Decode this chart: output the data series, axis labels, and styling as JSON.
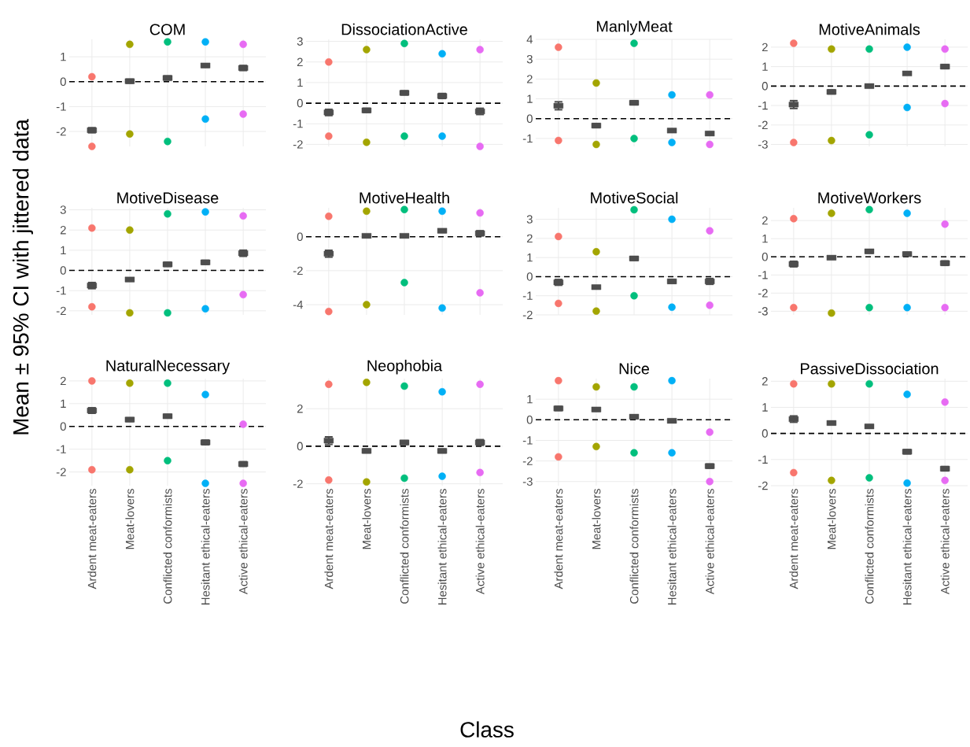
{
  "chart_data": [
    {
      "type": "scatter",
      "title": "COM",
      "categories": [
        "Ardent meat-eaters",
        "Meat-lovers",
        "Conflicted conformists",
        "Hesitant ethical-eaters",
        "Active ethical-eaters"
      ],
      "ylabel": null,
      "ylim": [
        -2.6,
        1.7
      ],
      "yticks": [
        -2,
        -1,
        0,
        1
      ],
      "grid": true,
      "tick_labels": "y",
      "ref_lines": [
        {
          "axis": "y",
          "value": 0,
          "line_style": "dashed",
          "color": "#000000"
        }
      ],
      "series": [
        {
          "type": "scatter",
          "marker": "circle",
          "x": [
            "Ardent meat-eaters",
            "Ardent meat-eaters",
            "Meat-lovers",
            "Meat-lovers",
            "Conflicted conformists",
            "Conflicted conformists",
            "Hesitant ethical-eaters",
            "Hesitant ethical-eaters",
            "Active ethical-eaters",
            "Active ethical-eaters"
          ],
          "values": [
            -2.6,
            0.2,
            -2.1,
            1.5,
            -2.4,
            1.6,
            -1.5,
            1.6,
            -1.3,
            1.5
          ],
          "colors": [
            "#f8766d",
            "#f8766d",
            "#a3a500",
            "#a3a500",
            "#00bf7d",
            "#00bf7d",
            "#00b0f6",
            "#00b0f6",
            "#e76bf3",
            "#e76bf3"
          ]
        },
        {
          "type": "scatter",
          "marker": "square",
          "color": "#4d4d4d",
          "values": [
            -1.95,
            0.02,
            0.15,
            0.65,
            0.55
          ],
          "errors": [
            0.1,
            0.08,
            0.08,
            0.07,
            0.1
          ]
        }
      ]
    },
    {
      "type": "scatter",
      "title": "DissociationActive",
      "categories": [
        "Ardent meat-eaters",
        "Meat-lovers",
        "Conflicted conformists",
        "Hesitant ethical-eaters",
        "Active ethical-eaters"
      ],
      "ylim": [
        -2.1,
        3.1
      ],
      "yticks": [
        -2,
        -1,
        0,
        1,
        2,
        3
      ],
      "grid": true,
      "tick_labels": "y",
      "ref_lines": [
        {
          "axis": "y",
          "value": 0,
          "line_style": "dashed",
          "color": "#000000"
        }
      ],
      "series": [
        {
          "type": "scatter",
          "marker": "circle",
          "x": [
            "Ardent meat-eaters",
            "Ardent meat-eaters",
            "Meat-lovers",
            "Meat-lovers",
            "Conflicted conformists",
            "Conflicted conformists",
            "Hesitant ethical-eaters",
            "Hesitant ethical-eaters",
            "Active ethical-eaters",
            "Active ethical-eaters"
          ],
          "values": [
            -1.6,
            2.0,
            -1.9,
            2.6,
            -1.6,
            2.9,
            -1.6,
            2.4,
            -2.1,
            2.6
          ],
          "colors": [
            "#f8766d",
            "#f8766d",
            "#a3a500",
            "#a3a500",
            "#00bf7d",
            "#00bf7d",
            "#00b0f6",
            "#00b0f6",
            "#e76bf3",
            "#e76bf3"
          ]
        },
        {
          "type": "scatter",
          "marker": "square",
          "color": "#4d4d4d",
          "values": [
            -0.45,
            -0.35,
            0.5,
            0.35,
            -0.4
          ],
          "errors": [
            0.15,
            0.1,
            0.1,
            0.12,
            0.15
          ]
        }
      ]
    },
    {
      "type": "scatter",
      "title": "ManlyMeat",
      "categories": [
        "Ardent meat-eaters",
        "Meat-lovers",
        "Conflicted conformists",
        "Hesitant ethical-eaters",
        "Active ethical-eaters"
      ],
      "ylim": [
        -1.4,
        4.0
      ],
      "yticks": [
        -1,
        0,
        1,
        2,
        3,
        4
      ],
      "grid": true,
      "tick_labels": "y",
      "ref_lines": [
        {
          "axis": "y",
          "value": 0,
          "line_style": "dashed",
          "color": "#000000"
        }
      ],
      "series": [
        {
          "type": "scatter",
          "marker": "circle",
          "x": [
            "Ardent meat-eaters",
            "Ardent meat-eaters",
            "Meat-lovers",
            "Meat-lovers",
            "Conflicted conformists",
            "Conflicted conformists",
            "Hesitant ethical-eaters",
            "Hesitant ethical-eaters",
            "Active ethical-eaters",
            "Active ethical-eaters"
          ],
          "values": [
            -1.1,
            3.6,
            -1.3,
            1.8,
            -1.0,
            3.8,
            -1.2,
            1.2,
            -1.3,
            1.2
          ],
          "colors": [
            "#f8766d",
            "#f8766d",
            "#a3a500",
            "#a3a500",
            "#00bf7d",
            "#00bf7d",
            "#00b0f6",
            "#00b0f6",
            "#e76bf3",
            "#e76bf3"
          ]
        },
        {
          "type": "scatter",
          "marker": "square",
          "color": "#4d4d4d",
          "values": [
            0.65,
            -0.35,
            0.8,
            -0.6,
            -0.75
          ],
          "errors": [
            0.2,
            0.1,
            0.1,
            0.08,
            0.08
          ]
        }
      ]
    },
    {
      "type": "scatter",
      "title": "MotiveAnimals",
      "categories": [
        "Ardent meat-eaters",
        "Meat-lovers",
        "Conflicted conformists",
        "Hesitant ethical-eaters",
        "Active ethical-eaters"
      ],
      "ylim": [
        -3.1,
        2.4
      ],
      "yticks": [
        -3,
        -2,
        -1,
        0,
        1,
        2
      ],
      "grid": true,
      "tick_labels": "y",
      "ref_lines": [
        {
          "axis": "y",
          "value": 0,
          "line_style": "dashed",
          "color": "#000000"
        }
      ],
      "series": [
        {
          "type": "scatter",
          "marker": "circle",
          "x": [
            "Ardent meat-eaters",
            "Ardent meat-eaters",
            "Meat-lovers",
            "Meat-lovers",
            "Conflicted conformists",
            "Conflicted conformists",
            "Hesitant ethical-eaters",
            "Hesitant ethical-eaters",
            "Active ethical-eaters",
            "Active ethical-eaters"
          ],
          "values": [
            -2.9,
            2.2,
            -2.8,
            1.9,
            -2.5,
            1.9,
            -1.1,
            2.0,
            -0.9,
            1.9
          ],
          "colors": [
            "#f8766d",
            "#f8766d",
            "#a3a500",
            "#a3a500",
            "#00bf7d",
            "#00bf7d",
            "#00b0f6",
            "#00b0f6",
            "#e76bf3",
            "#e76bf3"
          ]
        },
        {
          "type": "scatter",
          "marker": "square",
          "color": "#4d4d4d",
          "values": [
            -0.95,
            -0.3,
            0.0,
            0.65,
            1.0
          ],
          "errors": [
            0.2,
            0.1,
            0.08,
            0.07,
            0.1
          ]
        }
      ]
    },
    {
      "type": "scatter",
      "title": "MotiveDisease",
      "categories": [
        "Ardent meat-eaters",
        "Meat-lovers",
        "Conflicted conformists",
        "Hesitant ethical-eaters",
        "Active ethical-eaters"
      ],
      "ylabel": "Mean ± 95% CI with jittered data",
      "ylim": [
        -2.2,
        3.1
      ],
      "yticks": [
        -2,
        -1,
        0,
        1,
        2,
        3
      ],
      "grid": true,
      "tick_labels": "y",
      "ref_lines": [
        {
          "axis": "y",
          "value": 0,
          "line_style": "dashed",
          "color": "#000000"
        }
      ],
      "series": [
        {
          "type": "scatter",
          "marker": "circle",
          "x": [
            "Ardent meat-eaters",
            "Ardent meat-eaters",
            "Meat-lovers",
            "Meat-lovers",
            "Conflicted conformists",
            "Conflicted conformists",
            "Hesitant ethical-eaters",
            "Hesitant ethical-eaters",
            "Active ethical-eaters",
            "Active ethical-eaters"
          ],
          "values": [
            -1.8,
            2.1,
            -2.1,
            2.0,
            -2.1,
            2.8,
            -1.9,
            2.9,
            -1.2,
            2.7
          ],
          "colors": [
            "#f8766d",
            "#f8766d",
            "#a3a500",
            "#a3a500",
            "#00bf7d",
            "#00bf7d",
            "#00b0f6",
            "#00b0f6",
            "#e76bf3",
            "#e76bf3"
          ]
        },
        {
          "type": "scatter",
          "marker": "square",
          "color": "#4d4d4d",
          "values": [
            -0.75,
            -0.45,
            0.3,
            0.4,
            0.85
          ],
          "errors": [
            0.15,
            0.08,
            0.1,
            0.1,
            0.15
          ]
        }
      ]
    },
    {
      "type": "scatter",
      "title": "MotiveHealth",
      "categories": [
        "Ardent meat-eaters",
        "Meat-lovers",
        "Conflicted conformists",
        "Hesitant ethical-eaters",
        "Active ethical-eaters"
      ],
      "ylim": [
        -4.6,
        1.7
      ],
      "yticks": [
        -4,
        -2,
        0
      ],
      "grid": true,
      "tick_labels": "y",
      "ref_lines": [
        {
          "axis": "y",
          "value": 0,
          "line_style": "dashed",
          "color": "#000000"
        }
      ],
      "series": [
        {
          "type": "scatter",
          "marker": "circle",
          "x": [
            "Ardent meat-eaters",
            "Ardent meat-eaters",
            "Meat-lovers",
            "Meat-lovers",
            "Conflicted conformists",
            "Conflicted conformists",
            "Hesitant ethical-eaters",
            "Hesitant ethical-eaters",
            "Active ethical-eaters",
            "Active ethical-eaters"
          ],
          "values": [
            -4.4,
            1.2,
            -4.0,
            1.5,
            -2.7,
            1.6,
            -4.2,
            1.5,
            -3.3,
            1.4
          ],
          "colors": [
            "#f8766d",
            "#f8766d",
            "#a3a500",
            "#a3a500",
            "#00bf7d",
            "#00bf7d",
            "#00b0f6",
            "#00b0f6",
            "#e76bf3",
            "#e76bf3"
          ]
        },
        {
          "type": "scatter",
          "marker": "square",
          "color": "#4d4d4d",
          "values": [
            -1.0,
            0.05,
            0.05,
            0.35,
            0.2
          ],
          "errors": [
            0.2,
            0.08,
            0.08,
            0.1,
            0.15
          ]
        }
      ]
    },
    {
      "type": "scatter",
      "title": "MotiveSocial",
      "categories": [
        "Ardent meat-eaters",
        "Meat-lovers",
        "Conflicted conformists",
        "Hesitant ethical-eaters",
        "Active ethical-eaters"
      ],
      "ylim": [
        -2.0,
        3.6
      ],
      "yticks": [
        -2,
        -1,
        0,
        1,
        2,
        3
      ],
      "grid": true,
      "tick_labels": "y",
      "ref_lines": [
        {
          "axis": "y",
          "value": 0,
          "line_style": "dashed",
          "color": "#000000"
        }
      ],
      "series": [
        {
          "type": "scatter",
          "marker": "circle",
          "x": [
            "Ardent meat-eaters",
            "Ardent meat-eaters",
            "Meat-lovers",
            "Meat-lovers",
            "Conflicted conformists",
            "Conflicted conformists",
            "Hesitant ethical-eaters",
            "Hesitant ethical-eaters",
            "Active ethical-eaters",
            "Active ethical-eaters"
          ],
          "values": [
            -1.4,
            2.1,
            -1.8,
            1.3,
            -1.0,
            3.5,
            -1.6,
            3.0,
            -1.5,
            2.4
          ],
          "colors": [
            "#f8766d",
            "#f8766d",
            "#a3a500",
            "#a3a500",
            "#00bf7d",
            "#00bf7d",
            "#00b0f6",
            "#00b0f6",
            "#e76bf3",
            "#e76bf3"
          ]
        },
        {
          "type": "scatter",
          "marker": "square",
          "color": "#4d4d4d",
          "values": [
            -0.3,
            -0.55,
            0.95,
            -0.25,
            -0.25
          ],
          "errors": [
            0.15,
            0.08,
            0.1,
            0.1,
            0.15
          ]
        }
      ]
    },
    {
      "type": "scatter",
      "title": "MotiveWorkers",
      "categories": [
        "Ardent meat-eaters",
        "Meat-lovers",
        "Conflicted conformists",
        "Hesitant ethical-eaters",
        "Active ethical-eaters"
      ],
      "ylim": [
        -3.2,
        2.7
      ],
      "yticks": [
        -3,
        -2,
        -1,
        0,
        1,
        2
      ],
      "grid": true,
      "tick_labels": "y",
      "ref_lines": [
        {
          "axis": "y",
          "value": 0,
          "line_style": "dashed",
          "color": "#000000"
        }
      ],
      "series": [
        {
          "type": "scatter",
          "marker": "circle",
          "x": [
            "Ardent meat-eaters",
            "Ardent meat-eaters",
            "Meat-lovers",
            "Meat-lovers",
            "Conflicted conformists",
            "Conflicted conformists",
            "Hesitant ethical-eaters",
            "Hesitant ethical-eaters",
            "Active ethical-eaters",
            "Active ethical-eaters"
          ],
          "values": [
            -2.8,
            2.1,
            -3.1,
            2.4,
            -2.8,
            2.6,
            -2.8,
            2.4,
            -2.8,
            1.8
          ],
          "colors": [
            "#f8766d",
            "#f8766d",
            "#a3a500",
            "#a3a500",
            "#00bf7d",
            "#00bf7d",
            "#00b0f6",
            "#00b0f6",
            "#e76bf3",
            "#e76bf3"
          ]
        },
        {
          "type": "scatter",
          "marker": "square",
          "color": "#4d4d4d",
          "values": [
            -0.4,
            -0.05,
            0.3,
            0.15,
            -0.35
          ],
          "errors": [
            0.15,
            0.08,
            0.1,
            0.1,
            0.12
          ]
        }
      ]
    },
    {
      "type": "scatter",
      "title": "NaturalNecessary",
      "categories": [
        "Ardent meat-eaters",
        "Meat-lovers",
        "Conflicted conformists",
        "Hesitant ethical-eaters",
        "Active ethical-eaters"
      ],
      "ylim": [
        -2.6,
        2.1
      ],
      "yticks": [
        -2,
        -1,
        0,
        1,
        2
      ],
      "grid": true,
      "ref_lines": [
        {
          "axis": "y",
          "value": 0,
          "line_style": "dashed",
          "color": "#000000"
        }
      ],
      "series": [
        {
          "type": "scatter",
          "marker": "circle",
          "x": [
            "Ardent meat-eaters",
            "Ardent meat-eaters",
            "Meat-lovers",
            "Meat-lovers",
            "Conflicted conformists",
            "Conflicted conformists",
            "Hesitant ethical-eaters",
            "Hesitant ethical-eaters",
            "Active ethical-eaters",
            "Active ethical-eaters"
          ],
          "values": [
            -1.9,
            2.0,
            -1.9,
            1.9,
            -1.5,
            1.9,
            -2.5,
            1.4,
            -2.5,
            0.1
          ],
          "colors": [
            "#f8766d",
            "#f8766d",
            "#a3a500",
            "#a3a500",
            "#00bf7d",
            "#00bf7d",
            "#00b0f6",
            "#00b0f6",
            "#e76bf3",
            "#e76bf3"
          ]
        },
        {
          "type": "scatter",
          "marker": "square",
          "color": "#4d4d4d",
          "values": [
            0.7,
            0.3,
            0.45,
            -0.7,
            -1.65
          ],
          "errors": [
            0.12,
            0.08,
            0.08,
            0.1,
            0.1
          ]
        }
      ]
    },
    {
      "type": "scatter",
      "title": "Neophobia",
      "categories": [
        "Ardent meat-eaters",
        "Meat-lovers",
        "Conflicted conformists",
        "Hesitant ethical-eaters",
        "Active ethical-eaters"
      ],
      "xlabel": "Class",
      "ylim": [
        -2.1,
        3.6
      ],
      "yticks": [
        -2,
        0,
        2
      ],
      "grid": true,
      "ref_lines": [
        {
          "axis": "y",
          "value": 0,
          "line_style": "dashed",
          "color": "#000000"
        }
      ],
      "series": [
        {
          "type": "scatter",
          "marker": "circle",
          "x": [
            "Ardent meat-eaters",
            "Ardent meat-eaters",
            "Meat-lovers",
            "Meat-lovers",
            "Conflicted conformists",
            "Conflicted conformists",
            "Hesitant ethical-eaters",
            "Hesitant ethical-eaters",
            "Active ethical-eaters",
            "Active ethical-eaters"
          ],
          "values": [
            -1.8,
            3.3,
            -1.9,
            3.4,
            -1.7,
            3.2,
            -1.6,
            2.9,
            -1.4,
            3.3
          ],
          "colors": [
            "#f8766d",
            "#f8766d",
            "#a3a500",
            "#a3a500",
            "#00bf7d",
            "#00bf7d",
            "#00b0f6",
            "#00b0f6",
            "#e76bf3",
            "#e76bf3"
          ]
        },
        {
          "type": "scatter",
          "marker": "square",
          "color": "#4d4d4d",
          "values": [
            0.3,
            -0.25,
            0.2,
            -0.25,
            0.2
          ],
          "errors": [
            0.2,
            0.1,
            0.1,
            0.1,
            0.15
          ]
        }
      ]
    },
    {
      "type": "scatter",
      "title": "Nice",
      "categories": [
        "Ardent meat-eaters",
        "Meat-lovers",
        "Conflicted conformists",
        "Hesitant ethical-eaters",
        "Active ethical-eaters"
      ],
      "ylim": [
        -3.2,
        2.0
      ],
      "yticks": [
        -3,
        -2,
        -1,
        0,
        1
      ],
      "grid": true,
      "ref_lines": [
        {
          "axis": "y",
          "value": 0,
          "line_style": "dashed",
          "color": "#000000"
        }
      ],
      "series": [
        {
          "type": "scatter",
          "marker": "circle",
          "x": [
            "Ardent meat-eaters",
            "Ardent meat-eaters",
            "Meat-lovers",
            "Meat-lovers",
            "Conflicted conformists",
            "Conflicted conformists",
            "Hesitant ethical-eaters",
            "Hesitant ethical-eaters",
            "Active ethical-eaters",
            "Active ethical-eaters"
          ],
          "values": [
            -1.8,
            1.9,
            -1.3,
            1.6,
            -1.6,
            1.6,
            -1.6,
            1.9,
            -3.0,
            -0.6
          ],
          "colors": [
            "#f8766d",
            "#f8766d",
            "#a3a500",
            "#a3a500",
            "#00bf7d",
            "#00bf7d",
            "#00b0f6",
            "#00b0f6",
            "#e76bf3",
            "#e76bf3"
          ]
        },
        {
          "type": "scatter",
          "marker": "square",
          "color": "#4d4d4d",
          "values": [
            0.55,
            0.5,
            0.15,
            -0.05,
            -2.25
          ],
          "errors": [
            0.1,
            0.08,
            0.08,
            0.08,
            0.1
          ]
        }
      ]
    },
    {
      "type": "scatter",
      "title": "PassiveDissociation",
      "categories": [
        "Ardent meat-eaters",
        "Meat-lovers",
        "Conflicted conformists",
        "Hesitant ethical-eaters",
        "Active ethical-eaters"
      ],
      "ylim": [
        -2.0,
        2.1
      ],
      "yticks": [
        -2,
        -1,
        0,
        1,
        2
      ],
      "grid": true,
      "ref_lines": [
        {
          "axis": "y",
          "value": 0,
          "line_style": "dashed",
          "color": "#000000"
        }
      ],
      "series": [
        {
          "type": "scatter",
          "marker": "circle",
          "x": [
            "Ardent meat-eaters",
            "Ardent meat-eaters",
            "Meat-lovers",
            "Meat-lovers",
            "Conflicted conformists",
            "Conflicted conformists",
            "Hesitant ethical-eaters",
            "Hesitant ethical-eaters",
            "Active ethical-eaters",
            "Active ethical-eaters"
          ],
          "values": [
            -1.5,
            1.9,
            -1.8,
            1.9,
            -1.7,
            1.9,
            -1.9,
            1.5,
            -1.8,
            1.2
          ],
          "colors": [
            "#f8766d",
            "#f8766d",
            "#a3a500",
            "#a3a500",
            "#00bf7d",
            "#00bf7d",
            "#00b0f6",
            "#00b0f6",
            "#e76bf3",
            "#e76bf3"
          ]
        },
        {
          "type": "scatter",
          "marker": "square",
          "color": "#4d4d4d",
          "values": [
            0.55,
            0.4,
            0.27,
            -0.7,
            -1.35
          ],
          "errors": [
            0.12,
            0.06,
            0.06,
            0.08,
            0.08
          ]
        }
      ]
    }
  ]
}
